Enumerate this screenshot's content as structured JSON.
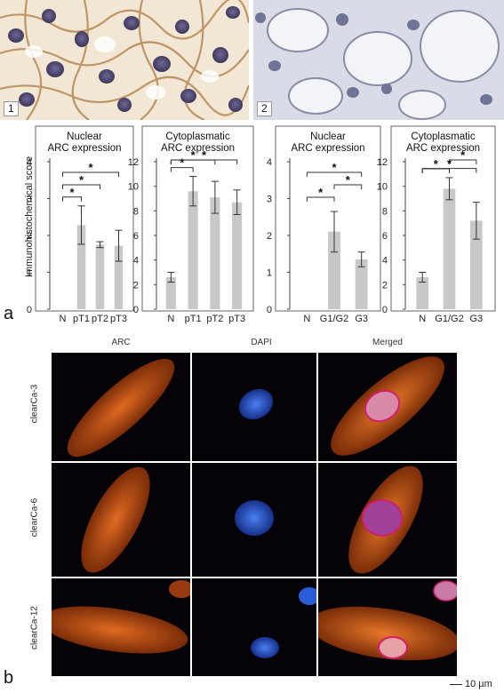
{
  "histology": {
    "panel1_label": "1",
    "panel2_label": "2"
  },
  "figure_a": {
    "letter": "a",
    "y_axis_label": "Immunohistochemical  score"
  },
  "chart_data": [
    {
      "type": "bar",
      "title": "Nuclear ARC expression",
      "title_lines": [
        "Nuclear",
        "ARC expression"
      ],
      "categories": [
        "N",
        "pT1",
        "pT2",
        "pT3"
      ],
      "values": [
        0,
        2.28,
        1.75,
        1.72
      ],
      "errors": [
        0,
        0.52,
        0.08,
        0.42
      ],
      "ylim": [
        0,
        4
      ],
      "yticks": [
        "0",
        "1",
        "2",
        "3",
        "4"
      ],
      "significance": [
        {
          "from": 0,
          "to": 1,
          "label": "*"
        },
        {
          "from": 0,
          "to": 2,
          "label": "*"
        },
        {
          "from": 0,
          "to": 3,
          "label": "*"
        }
      ]
    },
    {
      "type": "bar",
      "title": "Cytoplasmatic ARC expression",
      "title_lines": [
        "Cytoplasmatic",
        "ARC expression"
      ],
      "categories": [
        "N",
        "pT1",
        "pT2",
        "pT3"
      ],
      "values": [
        2.6,
        9.6,
        9.1,
        8.7
      ],
      "errors": [
        0.4,
        1.2,
        1.3,
        1.0
      ],
      "ylim": [
        0,
        12
      ],
      "yticks": [
        "0",
        "2",
        "4",
        "6",
        "8",
        "10",
        "12"
      ],
      "significance": [
        {
          "from": 0,
          "to": 1,
          "label": "*"
        },
        {
          "from": 0,
          "to": 2,
          "label": "*"
        },
        {
          "from": 0,
          "to": 3,
          "label": "*"
        }
      ]
    },
    {
      "type": "bar",
      "title": "Nuclear ARC expression",
      "title_lines": [
        "Nuclear",
        "ARC expression"
      ],
      "categories": [
        "N",
        "G1/G2",
        "G3"
      ],
      "values": [
        0,
        2.1,
        1.35
      ],
      "errors": [
        0,
        0.55,
        0.2
      ],
      "ylim": [
        0,
        4
      ],
      "yticks": [
        "0",
        "1",
        "2",
        "3",
        "4"
      ],
      "significance": [
        {
          "from": 0,
          "to": 1,
          "label": "*"
        },
        {
          "from": 1,
          "to": 2,
          "label": "*"
        },
        {
          "from": 0,
          "to": 2,
          "label": "*"
        }
      ]
    },
    {
      "type": "bar",
      "title": "Cytoplasmatic ARC expression",
      "title_lines": [
        "Cytoplasmatic",
        "ARC expression"
      ],
      "categories": [
        "N",
        "G1/G2",
        "G3"
      ],
      "values": [
        2.6,
        9.8,
        7.2
      ],
      "errors": [
        0.4,
        0.9,
        1.5
      ],
      "ylim": [
        0,
        12
      ],
      "yticks": [
        "0",
        "2",
        "4",
        "6",
        "8",
        "10",
        "12"
      ],
      "significance": [
        {
          "from": 0,
          "to": 1,
          "label": "*"
        },
        {
          "from": 1,
          "to": 2,
          "label": "*"
        },
        {
          "from": 0,
          "to": 2,
          "label": "*"
        }
      ]
    }
  ],
  "figure_b": {
    "letter": "b",
    "columns": [
      "ARC",
      "DAPI",
      "Merged"
    ],
    "rows": [
      "clearCa-3",
      "clearCa-6",
      "clearCa-12"
    ],
    "scale_bar": "10 µm",
    "colors": {
      "arc": "#d0601a",
      "dapi": "#2a5cd8",
      "merged_ring": "#d0206a",
      "background": "#050308"
    }
  }
}
